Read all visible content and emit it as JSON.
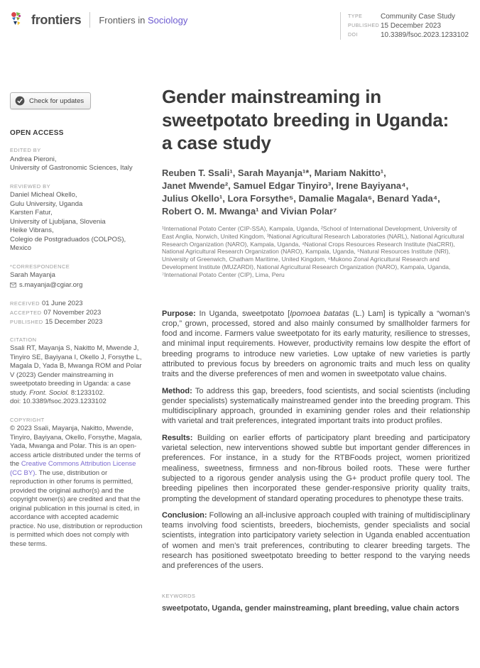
{
  "header": {
    "brand": "frontiers",
    "journal_prefix": "Frontiers in",
    "journal_name": "Sociology",
    "meta": [
      {
        "label": "TYPE",
        "value": "Community Case Study"
      },
      {
        "label": "PUBLISHED",
        "value": "15 December 2023"
      },
      {
        "label": "DOI",
        "value": "10.3389/fsoc.2023.1233102"
      }
    ]
  },
  "sidebar": {
    "check_updates_label": "Check for updates",
    "open_access": "OPEN ACCESS",
    "edited": {
      "label": "EDITED BY",
      "text": "Andrea Pieroni,\nUniversity of Gastronomic Sciences, Italy"
    },
    "reviewed": {
      "label": "REVIEWED BY",
      "text": "Daniel Micheal Okello,\nGulu University, Uganda\nKarsten Fatur,\nUniversity of Ljubljana, Slovenia\nHeike Vibrans,\nColegio de Postgraduados (COLPOS), Mexico"
    },
    "correspondence": {
      "label": "*CORRESPONDENCE",
      "name": "Sarah Mayanja",
      "email": "s.mayanja@cgiar.org"
    },
    "dates": [
      {
        "label": "RECEIVED",
        "value": "01 June 2023"
      },
      {
        "label": "ACCEPTED",
        "value": "07 November 2023"
      },
      {
        "label": "PUBLISHED",
        "value": "15 December 2023"
      }
    ],
    "citation": {
      "label": "CITATION",
      "text": "Ssali RT, Mayanja S, Nakitto M, Mwende J, Tinyiro SE, Bayiyana I, Okello J, Forsythe L, Magala D, Yada B, Mwanga ROM and Polar V (2023) Gender mainstreaming in sweetpotato breeding in Uganda: a case study. ",
      "journal_italic": "Front. Sociol.",
      "ref": " 8:1233102.",
      "doi": "doi: 10.3389/fsoc.2023.1233102"
    },
    "copyright": {
      "label": "COPYRIGHT",
      "pre": "© 2023 Ssali, Mayanja, Nakitto, Mwende, Tinyiro, Bayiyana, Okello, Forsythe, Magala, Yada, Mwanga and Polar. This is an open-access article distributed under the terms of the ",
      "link": "Creative Commons Attribution License (CC BY)",
      "post": ". The use, distribution or reproduction in other forums is permitted, provided the original author(s) and the copyright owner(s) are credited and that the original publication in this journal is cited, in accordance with accepted academic practice. No use, distribution or reproduction is permitted which does not comply with these terms."
    }
  },
  "article": {
    "title": "Gender mainstreaming in\nsweetpotato breeding in Uganda:\na case study",
    "authors": "Reuben T. Ssali¹, Sarah Mayanja¹*, Mariam Nakitto¹,\nJanet Mwende², Samuel Edgar Tinyiro³, Irene Bayiyana⁴,\nJulius Okello¹, Lora Forsythe⁵, Damalie Magala⁶, Benard Yada⁴,\nRobert O. M. Mwanga¹ and Vivian Polar⁷",
    "affiliations": "¹International Potato Center (CIP-SSA), Kampala, Uganda, ²School of International Development, University of East Anglia, Norwich, United Kingdom, ³National Agricultural Research Laboratories (NARL), National Agricultural Research Organization (NARO), Kampala, Uganda, ⁴National Crops Resources Research Institute (NaCRRI), National Agricultural Research Organization (NARO), Kampala, Uganda, ⁵Natural Resources Institute (NRI), University of Greenwich, Chatham Maritime, United Kingdom, ⁶Mukono Zonal Agricultural Research and Development Institute (MUZARDI), National Agricultural Research Organization (NARO), Kampala, Uganda, ⁷International Potato Center (CIP), Lima, Peru",
    "abstract": [
      {
        "lead": "Purpose:",
        "segments": [
          {
            "text": " In Uganda, sweetpotato ["
          },
          {
            "text": "Ipomoea batatas",
            "italic": true
          },
          {
            "text": " (L.) Lam] is typically a “woman’s crop,” grown, processed, stored and also mainly consumed by smallholder farmers for food and income. Farmers value sweetpotato for its early maturity, resilience to stresses, and minimal input requirements. However, productivity remains low despite the effort of breeding programs to introduce new varieties. Low uptake of new varieties is partly attributed to previous focus by breeders on agronomic traits and much less on quality traits and the diverse preferences of men and women in sweetpotato value chains."
          }
        ]
      },
      {
        "lead": "Method:",
        "segments": [
          {
            "text": " To address this gap, breeders, food scientists, and social scientists (including gender specialists) systematically mainstreamed gender into the breeding program. This multidisciplinary approach, grounded in examining gender roles and their relationship with varietal and trait preferences, integrated important traits into product profiles."
          }
        ]
      },
      {
        "lead": "Results:",
        "segments": [
          {
            "text": " Building on earlier efforts of participatory plant breeding and participatory varietal selection, new interventions showed subtle but important gender differences in preferences. For instance, in a study for the RTBFoods project, women prioritized mealiness, sweetness, firmness and non-fibrous boiled roots. These were further subjected to a rigorous gender analysis using the G+ product profile query tool. The breeding pipelines then incorporated these gender-responsive priority quality traits, prompting the development of standard operating procedures to phenotype these traits."
          }
        ]
      },
      {
        "lead": "Conclusion:",
        "segments": [
          {
            "text": " Following an all-inclusive approach coupled with training of multidisciplinary teams involving food scientists, breeders, biochemists, gender specialists and social scientists, integration into participatory variety selection in Uganda enabled accentuation of women and men’s trait preferences, contributing to clearer breeding targets. The research has positioned sweetpotato breeding to better respond to the varying needs and preferences of the users."
          }
        ]
      }
    ],
    "keywords_label": "KEYWORDS",
    "keywords": "sweetpotato, Uganda, gender mainstreaming, plant breeding, value chain actors"
  },
  "colors": {
    "accent_purple": "#6d5bd0",
    "link_purple": "#7b6bd1"
  }
}
